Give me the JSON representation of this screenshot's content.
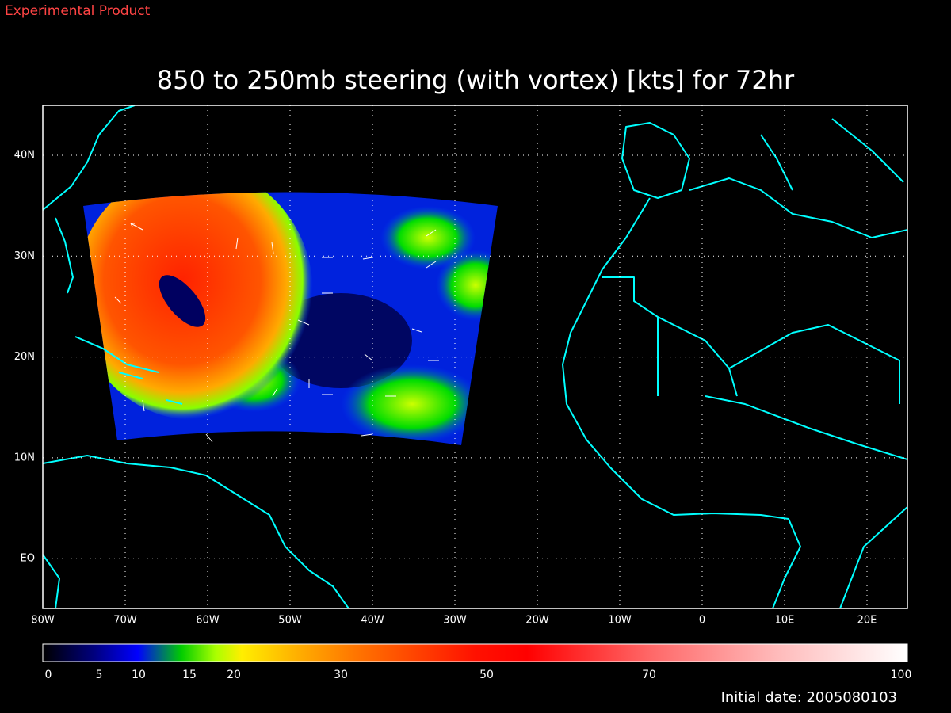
{
  "header": {
    "label": "Experimental Product",
    "title": "850 to 250mb steering (with vortex) [kts] for 72hr"
  },
  "map": {
    "lon_labels": [
      "80W",
      "70W",
      "60W",
      "50W",
      "40W",
      "30W",
      "20W",
      "10W",
      "0",
      "10E",
      "20E"
    ],
    "lat_labels": [
      "40N",
      "30N",
      "20N",
      "10N",
      "EQ"
    ]
  },
  "colorbar": {
    "labels": [
      "0",
      "5",
      "10",
      "15",
      "20",
      "30",
      "50",
      "70",
      "100"
    ]
  },
  "footer": {
    "initial_date": "Initial date: 2005080103"
  }
}
